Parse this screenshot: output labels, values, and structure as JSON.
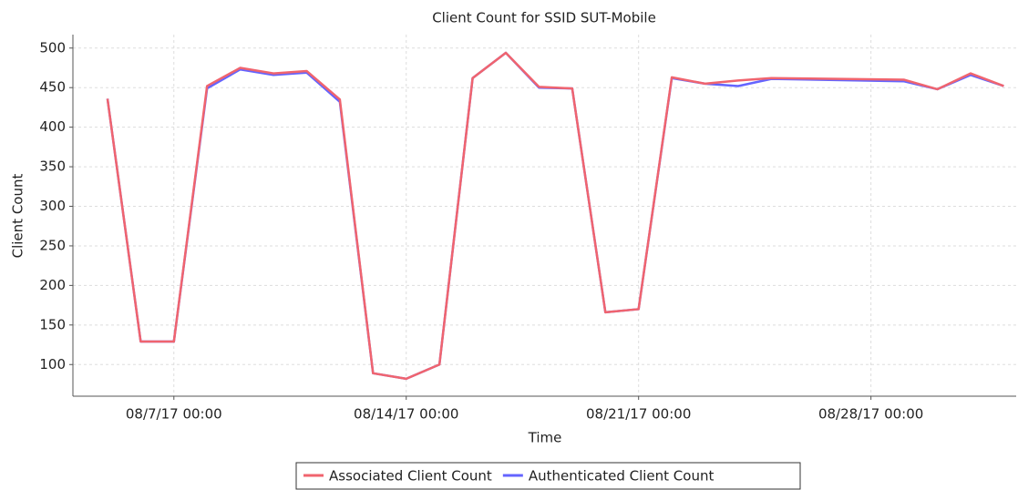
{
  "chart_data": {
    "type": "line",
    "title": "Client Count for SSID SUT-Mobile",
    "x_label": "Time",
    "y_label": "Client Count",
    "x": [
      "2017-08-05T00:00",
      "2017-08-06T00:00",
      "2017-08-07T00:00",
      "2017-08-08T00:00",
      "2017-08-09T00:00",
      "2017-08-10T00:00",
      "2017-08-11T00:00",
      "2017-08-12T00:00",
      "2017-08-13T00:00",
      "2017-08-14T00:00",
      "2017-08-15T00:00",
      "2017-08-16T00:00",
      "2017-08-17T00:00",
      "2017-08-18T00:00",
      "2017-08-19T00:00",
      "2017-08-20T00:00",
      "2017-08-21T00:00",
      "2017-08-22T00:00",
      "2017-08-23T00:00",
      "2017-08-24T00:00",
      "2017-08-25T00:00",
      "2017-08-29T00:00",
      "2017-08-30T00:00",
      "2017-08-31T00:00",
      "2017-09-01T00:00"
    ],
    "series": [
      {
        "name": "Associated Client Count",
        "color": "#f0646e",
        "values": [
          436,
          129,
          129,
          452,
          475,
          468,
          471,
          435,
          89,
          82,
          100,
          462,
          494,
          451,
          449,
          166,
          170,
          463,
          455,
          459,
          462,
          460,
          448,
          468,
          452
        ]
      },
      {
        "name": "Authenticated Client Count",
        "color": "#6464ff",
        "values": [
          436,
          129,
          129,
          449,
          473,
          466,
          469,
          432,
          89,
          82,
          100,
          462,
          494,
          450,
          449,
          166,
          170,
          462,
          455,
          452,
          461,
          458,
          448,
          466,
          452
        ]
      }
    ],
    "xlim": [
      "2017-08-03T23:00",
      "2017-09-01T09:00"
    ],
    "xticks": [
      {
        "value": "2017-08-07T00:00",
        "label": "08/7/17 00:00"
      },
      {
        "value": "2017-08-14T00:00",
        "label": "08/14/17 00:00"
      },
      {
        "value": "2017-08-21T00:00",
        "label": "08/21/17 00:00"
      },
      {
        "value": "2017-08-28T00:00",
        "label": "08/28/17 00:00"
      }
    ],
    "ylim": [
      60,
      517
    ],
    "yticks": [
      100,
      150,
      200,
      250,
      300,
      350,
      400,
      450,
      500
    ],
    "grid": true,
    "legend": "bottom"
  }
}
